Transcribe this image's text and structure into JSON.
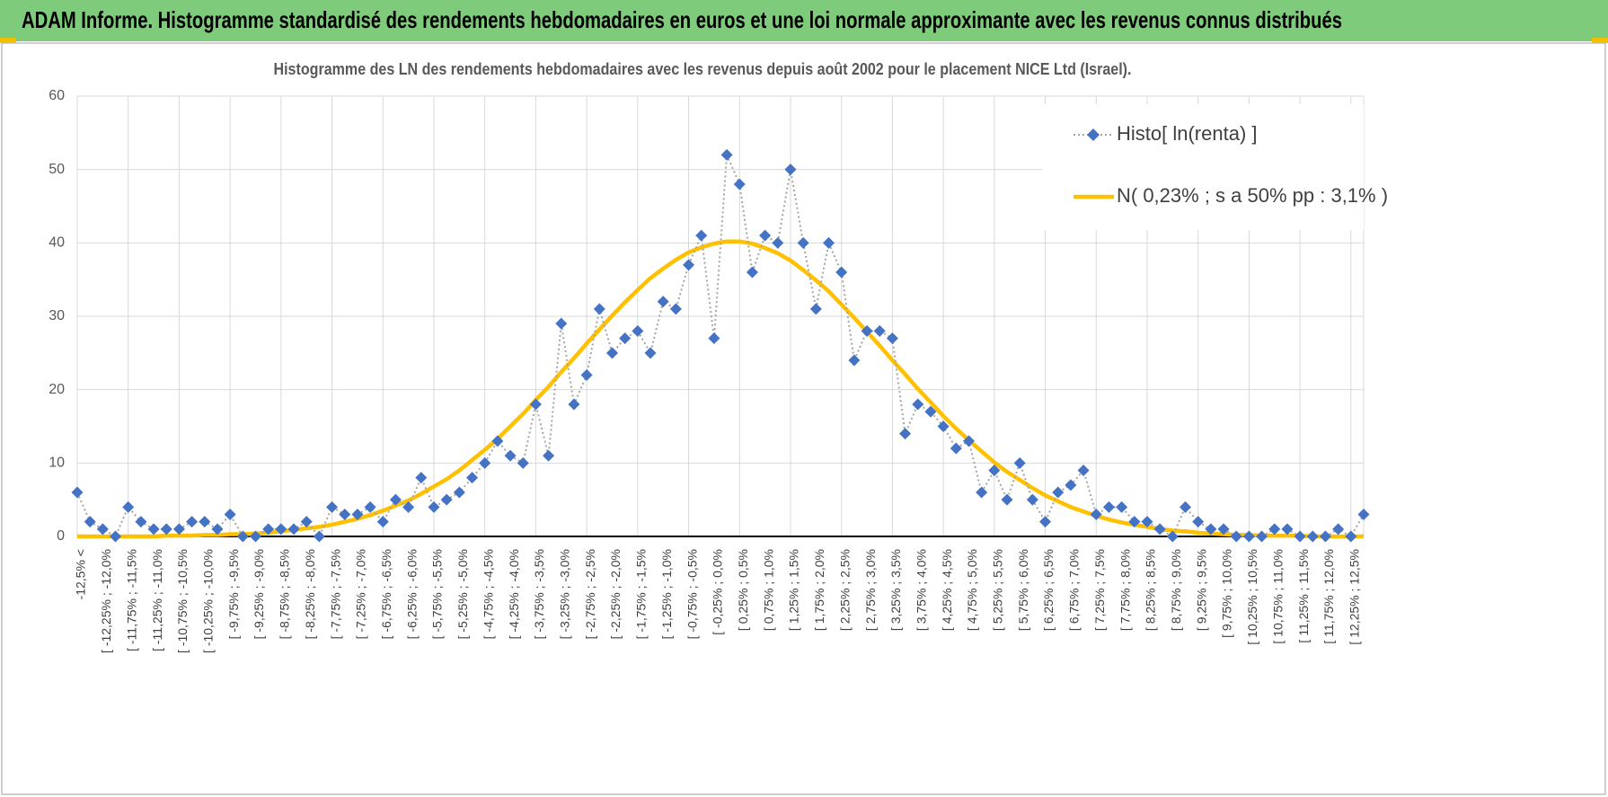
{
  "chart_data": {
    "type": "line",
    "title": "ADAM Informe. Histogramme standardisé des rendements hebdomadaires en euros et une loi normale approximante avec les revenus connus distribués",
    "subtitle": "Histogramme des LN des rendements hebdomadaires avec les revenus depuis août 2002 pour le placement NICE Ltd (Israel).",
    "categories": [
      "-12,5% <",
      null,
      "[ -12,25% ; -12,0%",
      null,
      "[ -11,75% ; -11,5%",
      null,
      "[ -11,25% ; -11,0%",
      null,
      "[ -10,75% ; -10,5%",
      null,
      "[ -10,25% ; -10,0%",
      null,
      "[ -9,75% ; -9,5%",
      null,
      "[ -9,25% ; -9,0%",
      null,
      "[ -8,75% ; -8,5%",
      null,
      "[ -8,25% ; -8,0%",
      null,
      "[ -7,75% ; -7,5%",
      null,
      "[ -7,25% ; -7,0%",
      null,
      "[ -6,75% ; -6,5%",
      null,
      "[ -6,25% ; -6,0%",
      null,
      "[ -5,75% ; -5,5%",
      null,
      "[ -5,25% ; -5,0%",
      null,
      "[ -4,75% ; -4,5%",
      null,
      "[ -4,25% ; -4,0%",
      null,
      "[ -3,75% ; -3,5%",
      null,
      "[ -3,25% ; -3,0%",
      null,
      "[ -2,75% ; -2,5%",
      null,
      "[ -2,25% ; -2,0%",
      null,
      "[ -1,75% ; -1,5%",
      null,
      "[ -1,25% ; -1,0%",
      null,
      "[ -0,75% ; -0,5%",
      null,
      "[ -0,25% ; 0,0%",
      null,
      "[ 0,25% ; 0,5%",
      null,
      "[ 0,75% ; 1,0%",
      null,
      "[ 1,25% ; 1,5%",
      null,
      "[ 1,75% ; 2,0%",
      null,
      "[ 2,25% ; 2,5%",
      null,
      "[ 2,75% ; 3,0%",
      null,
      "[ 3,25% ; 3,5%",
      null,
      "[ 3,75% ; 4,0%",
      null,
      "[ 4,25% ; 4,5%",
      null,
      "[ 4,75% ; 5,0%",
      null,
      "[ 5,25% ; 5,5%",
      null,
      "[ 5,75% ; 6,0%",
      null,
      "[ 6,25% ; 6,5%",
      null,
      "[ 6,75% ; 7,0%",
      null,
      "[ 7,25% ; 7,5%",
      null,
      "[ 7,75% ; 8,0%",
      null,
      "[ 8,25% ; 8,5%",
      null,
      "[ 8,75% ; 9,0%",
      null,
      "[ 9,25% ; 9,5%",
      null,
      "[ 9,75% ; 10,0%",
      null,
      "[ 10,25% ; 10,5%",
      null,
      "[ 10,75% ; 11,0%",
      null,
      "[ 11,25% ; 11,5%",
      null,
      "[ 11,75% ; 12,0%",
      null,
      "[ 12,25% ; 12,5%",
      null
    ],
    "series": [
      {
        "name": "Histo[ ln(renta) ]",
        "color": "#4472c4",
        "line_color": "#a5a5a5",
        "line_style": "dotted",
        "marker": "diamond",
        "values": [
          6,
          2,
          1,
          0,
          4,
          2,
          1,
          1,
          1,
          2,
          2,
          1,
          3,
          0,
          0,
          1,
          1,
          1,
          2,
          0,
          4,
          3,
          3,
          4,
          2,
          5,
          4,
          8,
          4,
          5,
          6,
          8,
          10,
          13,
          11,
          10,
          18,
          11,
          29,
          18,
          22,
          31,
          25,
          27,
          28,
          25,
          32,
          31,
          37,
          41,
          27,
          52,
          48,
          36,
          41,
          40,
          50,
          40,
          31,
          40,
          36,
          24,
          28,
          28,
          27,
          14,
          18,
          17,
          15,
          12,
          13,
          6,
          9,
          5,
          10,
          5,
          2,
          6,
          7,
          9,
          3,
          4,
          4,
          2,
          2,
          1,
          0,
          4,
          2,
          1,
          1,
          0,
          0,
          0,
          1,
          1,
          0,
          0,
          0,
          1,
          0,
          3
        ]
      },
      {
        "name": "N( 0,23% ; s a 50% pp : 3,1% )",
        "color": "#ffc000",
        "line_style": "solid",
        "marker": "none",
        "values": [
          0,
          0,
          0,
          0,
          0,
          0,
          0,
          0.1,
          0.1,
          0.1,
          0.2,
          0.2,
          0.3,
          0.3,
          0.4,
          0.5,
          0.7,
          0.9,
          1.1,
          1.3,
          1.6,
          2.0,
          2.4,
          2.9,
          3.5,
          4.2,
          4.9,
          5.8,
          6.8,
          7.8,
          9.0,
          10.4,
          11.8,
          13.3,
          15.0,
          16.7,
          18.6,
          20.4,
          22.4,
          24.3,
          26.3,
          28.2,
          30.1,
          31.9,
          33.6,
          35.2,
          36.5,
          37.7,
          38.7,
          39.4,
          39.9,
          40.2,
          40.2,
          39.9,
          39.3,
          38.6,
          37.6,
          36.3,
          34.9,
          33.4,
          31.6,
          29.8,
          27.9,
          26.0,
          24.0,
          22.1,
          20.1,
          18.3,
          16.4,
          14.7,
          13.1,
          11.6,
          10.1,
          8.8,
          7.7,
          6.6,
          5.6,
          4.8,
          4.0,
          3.4,
          2.8,
          2.3,
          1.9,
          1.6,
          1.3,
          1.0,
          0.8,
          0.7,
          0.5,
          0.4,
          0.3,
          0.2,
          0.2,
          0.1,
          0.1,
          0.1,
          0.1,
          0,
          0,
          0,
          0,
          0
        ]
      }
    ],
    "ylim": [
      0,
      60
    ],
    "yticks": [
      0,
      10,
      20,
      30,
      40,
      50,
      60
    ],
    "grid": true,
    "legend": "top-right"
  }
}
